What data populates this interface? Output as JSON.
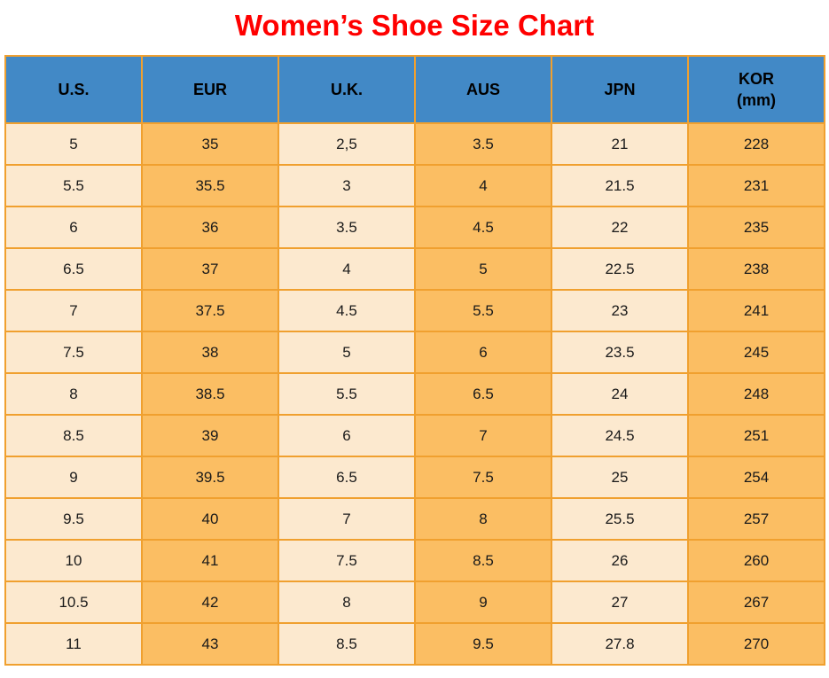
{
  "title": "Women’s Shoe Size Chart",
  "colors": {
    "title_red": "#FF0000",
    "header_blue": "#4289C6",
    "cell_light": "#FCE9CF",
    "cell_orange": "#FBBE63",
    "border_orange": "#F0A02F",
    "text_black": "#1A1A1A"
  },
  "chart_data": {
    "type": "table",
    "title": "Women’s Shoe Size Chart",
    "columns": [
      "U.S.",
      "EUR",
      "U.K.",
      "AUS",
      "JPN",
      "KOR (mm)"
    ],
    "header_display": [
      [
        "U.S."
      ],
      [
        "EUR"
      ],
      [
        "U.K."
      ],
      [
        "AUS"
      ],
      [
        "JPN"
      ],
      [
        "KOR",
        "(mm)"
      ]
    ],
    "rows": [
      [
        "5",
        "35",
        "2,5",
        "3.5",
        "21",
        "228"
      ],
      [
        "5.5",
        "35.5",
        "3",
        "4",
        "21.5",
        "231"
      ],
      [
        "6",
        "36",
        "3.5",
        "4.5",
        "22",
        "235"
      ],
      [
        "6.5",
        "37",
        "4",
        "5",
        "22.5",
        "238"
      ],
      [
        "7",
        "37.5",
        "4.5",
        "5.5",
        "23",
        "241"
      ],
      [
        "7.5",
        "38",
        "5",
        "6",
        "23.5",
        "245"
      ],
      [
        "8",
        "38.5",
        "5.5",
        "6.5",
        "24",
        "248"
      ],
      [
        "8.5",
        "39",
        "6",
        "7",
        "24.5",
        "251"
      ],
      [
        "9",
        "39.5",
        "6.5",
        "7.5",
        "25",
        "254"
      ],
      [
        "9.5",
        "40",
        "7",
        "8",
        "25.5",
        "257"
      ],
      [
        "10",
        "41",
        "7.5",
        "8.5",
        "26",
        "260"
      ],
      [
        "10.5",
        "42",
        "8",
        "9",
        "27",
        "267"
      ],
      [
        "11",
        "43",
        "8.5",
        "9.5",
        "27.8",
        "270"
      ]
    ],
    "layout": {
      "column_shading_pattern": [
        "light",
        "orange",
        "light",
        "orange",
        "light",
        "orange"
      ],
      "grid": true
    }
  }
}
